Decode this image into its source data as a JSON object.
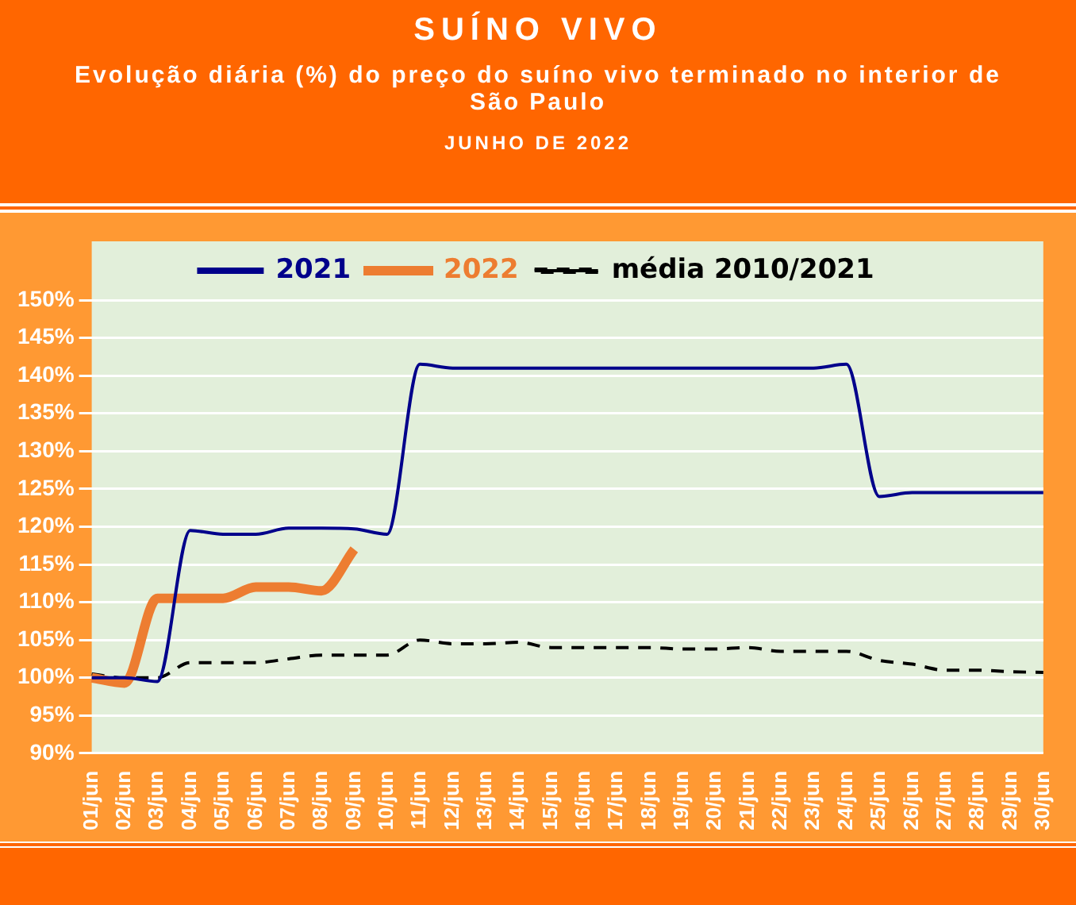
{
  "chart_data": {
    "type": "line",
    "title": "SUÍNO VIVO",
    "subtitle": "Evolução diária (%) do preço do suíno vivo terminado no interior de São Paulo",
    "annotations": [
      "JUNHO DE 2022"
    ],
    "categories": [
      "01/jun",
      "02/jun",
      "03/jun",
      "04/jun",
      "05/jun",
      "06/jun",
      "07/jun",
      "08/jun",
      "09/jun",
      "10/jun",
      "11/jun",
      "12/jun",
      "13/jun",
      "14/jun",
      "15/jun",
      "16/jun",
      "17/jun",
      "18/jun",
      "19/jun",
      "20/jun",
      "21/jun",
      "22/jun",
      "23/jun",
      "24/jun",
      "25/jun",
      "26/jun",
      "27/jun",
      "28/jun",
      "29/jun",
      "30/jun"
    ],
    "series": [
      {
        "name": "2021",
        "color": "#00008b",
        "line_style": "solid",
        "values": [
          100,
          100,
          99.5,
          119.5,
          119,
          119,
          119.8,
          119.8,
          119.7,
          119,
          141.5,
          141,
          141,
          141,
          141,
          141,
          141,
          141,
          141,
          141,
          141,
          141,
          141,
          141.5,
          124,
          124.5,
          124.5,
          124.5,
          124.5,
          124.5
        ]
      },
      {
        "name": "2022",
        "color": "#ed7d31",
        "line_style": "solid",
        "values": [
          100,
          99.3,
          110.5,
          110.5,
          110.5,
          112,
          112,
          111.5,
          117,
          null,
          null,
          null,
          null,
          null,
          null,
          null,
          null,
          null,
          null,
          null,
          null,
          null,
          null,
          null,
          null,
          null,
          null,
          null,
          null,
          null
        ]
      },
      {
        "name": "média 2010/2021",
        "color": "#000000",
        "line_style": "dashed",
        "values": [
          100.5,
          100,
          100,
          102,
          102,
          102,
          102.5,
          103,
          103,
          103,
          105,
          104.5,
          104.5,
          104.7,
          104,
          104,
          104,
          104,
          103.8,
          103.8,
          104,
          103.5,
          103.5,
          103.5,
          102.3,
          101.8,
          101,
          101,
          100.8,
          100.7
        ]
      }
    ],
    "ylim": [
      90,
      150
    ],
    "yticks": [
      {
        "value": 90,
        "label": "90%"
      },
      {
        "value": 95,
        "label": "95%"
      },
      {
        "value": 100,
        "label": "100%"
      },
      {
        "value": 105,
        "label": "105%"
      },
      {
        "value": 110,
        "label": "110%"
      },
      {
        "value": 115,
        "label": "115%"
      },
      {
        "value": 120,
        "label": "120%"
      },
      {
        "value": 125,
        "label": "125%"
      },
      {
        "value": 130,
        "label": "130%"
      },
      {
        "value": 135,
        "label": "135%"
      },
      {
        "value": 140,
        "label": "140%"
      },
      {
        "value": 145,
        "label": "145%"
      },
      {
        "value": 150,
        "label": "150%"
      }
    ],
    "grid": "y",
    "legend": "top",
    "marker": "none"
  }
}
